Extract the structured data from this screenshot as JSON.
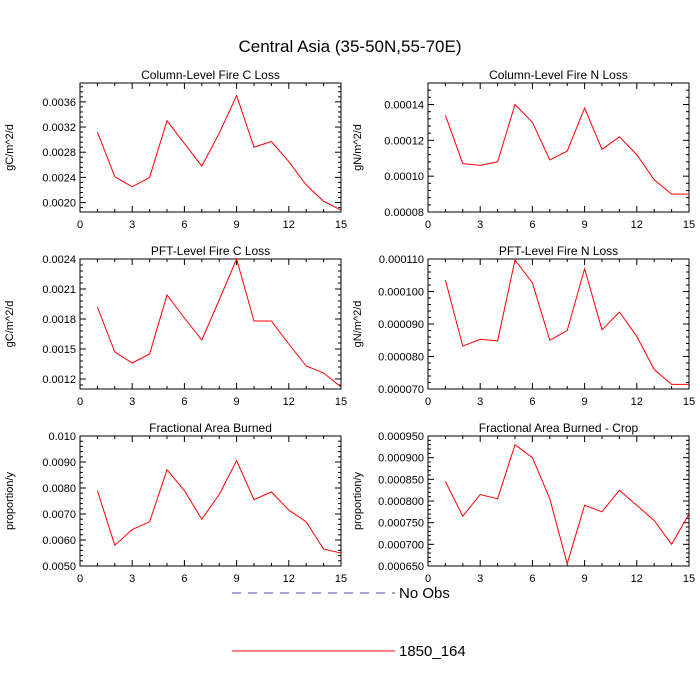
{
  "figure": {
    "title": "Central Asia (35-50N,55-70E)"
  },
  "legend": {
    "entries": [
      {
        "label": "No Obs",
        "color": "#4a4aa0",
        "style": "dashed"
      },
      {
        "label": "1850_164",
        "color": "#ff0000",
        "style": "solid"
      }
    ]
  },
  "chart_data": [
    {
      "type": "line",
      "title": "Column-Level Fire C Loss",
      "ylabel": "gC/m^2/d",
      "xlim": [
        0,
        15
      ],
      "ylim": [
        0.00185,
        0.0039
      ],
      "xticks": [
        0,
        3,
        6,
        9,
        12,
        15
      ],
      "yticks": [
        0.002,
        0.0024,
        0.0028,
        0.0032,
        0.0036
      ],
      "ytick_labels": [
        "0.0020",
        "0.0024",
        "0.0028",
        "0.0032",
        "0.0036"
      ],
      "series": [
        {
          "name": "1850_164",
          "color": "#ff0000",
          "x": [
            1,
            2,
            3,
            4,
            5,
            6,
            7,
            8,
            9,
            10,
            11,
            12,
            13,
            14,
            15
          ],
          "y": [
            0.00312,
            0.00241,
            0.00225,
            0.0024,
            0.0033,
            0.00294,
            0.00258,
            0.0031,
            0.0037,
            0.00288,
            0.00297,
            0.00265,
            0.00228,
            0.00202,
            0.00188
          ]
        }
      ]
    },
    {
      "type": "line",
      "title": "Column-Level Fire N Loss",
      "ylabel": "gN/m^2/d",
      "xlim": [
        0,
        15
      ],
      "ylim": [
        8e-05,
        0.000152
      ],
      "xticks": [
        0,
        3,
        6,
        9,
        12,
        15
      ],
      "yticks": [
        8e-05,
        0.0001,
        0.00012,
        0.00014
      ],
      "ytick_labels": [
        "0.00008",
        "0.00010",
        "0.00012",
        "0.00014"
      ],
      "series": [
        {
          "name": "1850_164",
          "color": "#ff0000",
          "x": [
            1,
            2,
            3,
            4,
            5,
            6,
            7,
            8,
            9,
            10,
            11,
            12,
            13,
            14,
            15
          ],
          "y": [
            0.000134,
            0.000107,
            0.000106,
            0.000108,
            0.00014,
            0.00013,
            0.000109,
            0.000114,
            0.000138,
            0.000115,
            0.000122,
            0.000112,
            9.8e-05,
            9e-05,
            9e-05
          ]
        }
      ]
    },
    {
      "type": "line",
      "title": "PFT-Level Fire C Loss",
      "ylabel": "gC/m^2/d",
      "xlim": [
        0,
        15
      ],
      "ylim": [
        0.0011,
        0.0024
      ],
      "xticks": [
        0,
        3,
        6,
        9,
        12,
        15
      ],
      "yticks": [
        0.0012,
        0.0015,
        0.0018,
        0.0021,
        0.0024
      ],
      "ytick_labels": [
        "0.0012",
        "0.0015",
        "0.0018",
        "0.0021",
        "0.0024"
      ],
      "series": [
        {
          "name": "1850_164",
          "color": "#ff0000",
          "x": [
            1,
            2,
            3,
            4,
            5,
            6,
            7,
            8,
            9,
            10,
            11,
            12,
            13,
            14,
            15
          ],
          "y": [
            0.00192,
            0.00147,
            0.00136,
            0.00145,
            0.00204,
            0.00181,
            0.00159,
            0.00199,
            0.0024,
            0.00178,
            0.00178,
            0.00155,
            0.00133,
            0.00126,
            0.00112
          ]
        }
      ]
    },
    {
      "type": "line",
      "title": "PFT-Level Fire N Loss",
      "ylabel": "gN/m^2/d",
      "xlim": [
        0,
        15
      ],
      "ylim": [
        7e-05,
        0.00011
      ],
      "xticks": [
        0,
        3,
        6,
        9,
        12,
        15
      ],
      "yticks": [
        7e-05,
        8e-05,
        9e-05,
        0.0001,
        0.00011
      ],
      "ytick_labels": [
        "0.000070",
        "0.000080",
        "0.000090",
        "0.000100",
        "0.000110"
      ],
      "series": [
        {
          "name": "1850_164",
          "color": "#ff0000",
          "x": [
            1,
            2,
            3,
            4,
            5,
            6,
            7,
            8,
            9,
            10,
            11,
            12,
            13,
            14,
            15
          ],
          "y": [
            0.0001035,
            8.32e-05,
            8.53e-05,
            8.48e-05,
            0.0001097,
            0.0001027,
            8.5e-05,
            8.8e-05,
            0.000107,
            8.82e-05,
            9.37e-05,
            8.62e-05,
            7.6e-05,
            7.14e-05,
            7.14e-05
          ]
        }
      ]
    },
    {
      "type": "line",
      "title": "Fractional Area Burned",
      "ylabel": "proportion/y",
      "xlim": [
        0,
        15
      ],
      "ylim": [
        0.005,
        0.01
      ],
      "xticks": [
        0,
        3,
        6,
        9,
        12,
        15
      ],
      "yticks": [
        0.005,
        0.006,
        0.007,
        0.008,
        0.009,
        0.01
      ],
      "ytick_labels": [
        "0.0050",
        "0.0060",
        "0.0070",
        "0.0080",
        "0.0090",
        "0.010"
      ],
      "series": [
        {
          "name": "1850_164",
          "color": "#ff0000",
          "x": [
            1,
            2,
            3,
            4,
            5,
            6,
            7,
            8,
            9,
            10,
            11,
            12,
            13,
            14,
            15
          ],
          "y": [
            0.0079,
            0.0058,
            0.0064,
            0.0067,
            0.0087,
            0.0079,
            0.0068,
            0.00775,
            0.00905,
            0.00755,
            0.00785,
            0.00715,
            0.0067,
            0.00565,
            0.0055
          ]
        }
      ]
    },
    {
      "type": "line",
      "title": "Fractional Area Burned - Crop",
      "ylabel": "proportion/y",
      "xlim": [
        0,
        15
      ],
      "ylim": [
        0.00065,
        0.00095
      ],
      "xticks": [
        0,
        3,
        6,
        9,
        12,
        15
      ],
      "yticks": [
        0.00065,
        0.0007,
        0.00075,
        0.0008,
        0.00085,
        0.0009,
        0.00095
      ],
      "ytick_labels": [
        "0.000650",
        "0.000700",
        "0.000750",
        "0.000800",
        "0.000850",
        "0.000900",
        "0.000950"
      ],
      "series": [
        {
          "name": "1850_164",
          "color": "#ff0000",
          "x": [
            1,
            2,
            3,
            4,
            5,
            6,
            7,
            8,
            9,
            10,
            11,
            12,
            13,
            14,
            15
          ],
          "y": [
            0.000845,
            0.000765,
            0.000815,
            0.000805,
            0.00093,
            0.0009,
            0.000805,
            0.000655,
            0.00079,
            0.000775,
            0.000825,
            0.00079,
            0.000755,
            0.0007,
            0.00077
          ]
        }
      ]
    }
  ]
}
